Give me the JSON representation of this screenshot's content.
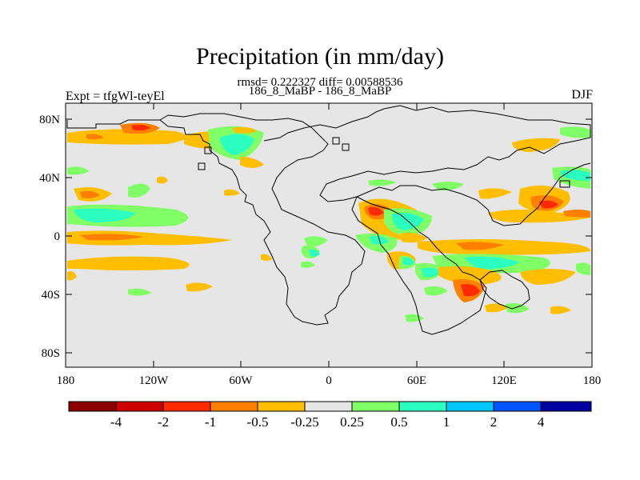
{
  "header": {
    "title": "Precipitation (in mm/day)",
    "stats": "rmsd= 0.222327 diff= 0.00588536",
    "experiment_name": "186_8_MaBP - 186_8_MaBP",
    "expt_label": "Expt = tfgWl-teyEl",
    "season": "DJF"
  },
  "map": {
    "lat_ticks": [
      "80N",
      "40N",
      "0",
      "40S",
      "80S"
    ],
    "lon_ticks": [
      "180",
      "120W",
      "60W",
      "0",
      "60E",
      "120E",
      "180"
    ],
    "background_color": "#e6e6e6"
  },
  "colorbar": {
    "colors": [
      "#8b0000",
      "#cc0000",
      "#ff2a00",
      "#ff7f00",
      "#ffbf00",
      "#e6e6e6",
      "#80ff66",
      "#2bffbf",
      "#00c8ff",
      "#0055ff",
      "#0000a0"
    ],
    "labels": [
      "-4",
      "-2",
      "-1",
      "-0.5",
      "-0.25",
      "0.25",
      "0.5",
      "1",
      "2",
      "4"
    ]
  }
}
